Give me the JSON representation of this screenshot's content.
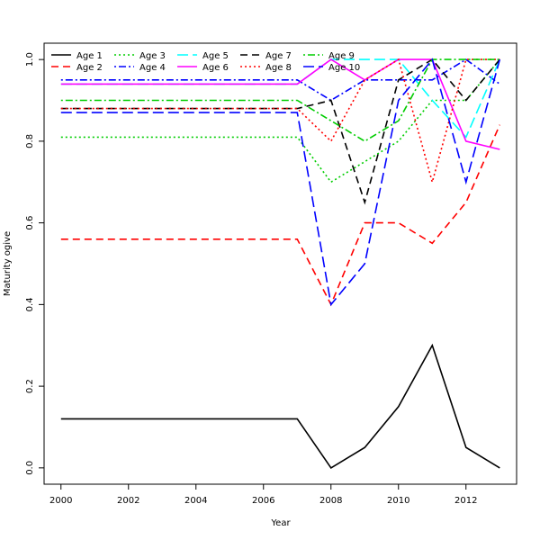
{
  "chart_data": {
    "type": "line",
    "title": "",
    "xlabel": "Year",
    "ylabel": "Maturity ogive",
    "xlim": [
      1999.5,
      2013.5
    ],
    "ylim": [
      -0.04,
      1.04
    ],
    "x_ticks": [
      "2000",
      "2002",
      "2004",
      "2006",
      "2008",
      "2010",
      "2012"
    ],
    "y_ticks": [
      "0.0",
      "0.2",
      "0.4",
      "0.6",
      "0.8",
      "1.0"
    ],
    "grid": false,
    "legend_position": "top-left",
    "x": [
      2000,
      2001,
      2002,
      2003,
      2004,
      2005,
      2006,
      2007,
      2008,
      2009,
      2010,
      2011,
      2012,
      2013
    ],
    "series": [
      {
        "name": "Age 1",
        "color": "#000000",
        "dash": "solid",
        "values": [
          0.12,
          0.12,
          0.12,
          0.12,
          0.12,
          0.12,
          0.12,
          0.12,
          0.0,
          0.05,
          0.15,
          0.3,
          0.05,
          0.0
        ]
      },
      {
        "name": "Age 2",
        "color": "#ff0000",
        "dash": "dashed",
        "values": [
          0.56,
          0.56,
          0.56,
          0.56,
          0.56,
          0.56,
          0.56,
          0.56,
          0.4,
          0.6,
          0.6,
          0.55,
          0.65,
          0.84
        ]
      },
      {
        "name": "Age 3",
        "color": "#00cd00",
        "dash": "dotted",
        "values": [
          0.81,
          0.81,
          0.81,
          0.81,
          0.81,
          0.81,
          0.81,
          0.81,
          0.7,
          0.75,
          0.8,
          0.9,
          0.9,
          1.0
        ]
      },
      {
        "name": "Age 4",
        "color": "#0000ff",
        "dash": "dotdash",
        "values": [
          0.95,
          0.95,
          0.95,
          0.95,
          0.95,
          0.95,
          0.95,
          0.95,
          0.9,
          0.95,
          0.95,
          0.95,
          1.0,
          0.94
        ]
      },
      {
        "name": "Age 5",
        "color": "#00ffff",
        "dash": "longdash",
        "values": [
          0.94,
          0.94,
          0.94,
          0.94,
          0.94,
          0.94,
          0.94,
          0.94,
          1.0,
          1.0,
          1.0,
          0.9,
          0.81,
          1.0
        ]
      },
      {
        "name": "Age 6",
        "color": "#ff00ff",
        "dash": "solid",
        "values": [
          0.94,
          0.94,
          0.94,
          0.94,
          0.94,
          0.94,
          0.94,
          0.94,
          1.0,
          0.95,
          1.0,
          1.0,
          0.8,
          0.78
        ]
      },
      {
        "name": "Age 7",
        "color": "#000000",
        "dash": "dashed",
        "values": [
          0.88,
          0.88,
          0.88,
          0.88,
          0.88,
          0.88,
          0.88,
          0.88,
          0.9,
          0.65,
          0.95,
          1.0,
          0.9,
          1.0
        ]
      },
      {
        "name": "Age 8",
        "color": "#ff0000",
        "dash": "dotted",
        "values": [
          0.88,
          0.88,
          0.88,
          0.88,
          0.88,
          0.88,
          0.88,
          0.88,
          0.8,
          0.95,
          1.0,
          0.7,
          1.0,
          1.0
        ]
      },
      {
        "name": "Age 9",
        "color": "#00cd00",
        "dash": "dotdash",
        "values": [
          0.9,
          0.9,
          0.9,
          0.9,
          0.9,
          0.9,
          0.9,
          0.9,
          0.85,
          0.8,
          0.85,
          1.0,
          1.0,
          1.0
        ]
      },
      {
        "name": "Age 10",
        "color": "#0000ff",
        "dash": "longdash",
        "values": [
          0.87,
          0.87,
          0.87,
          0.87,
          0.87,
          0.87,
          0.87,
          0.87,
          0.4,
          0.5,
          0.9,
          1.0,
          0.7,
          1.0
        ]
      }
    ]
  }
}
